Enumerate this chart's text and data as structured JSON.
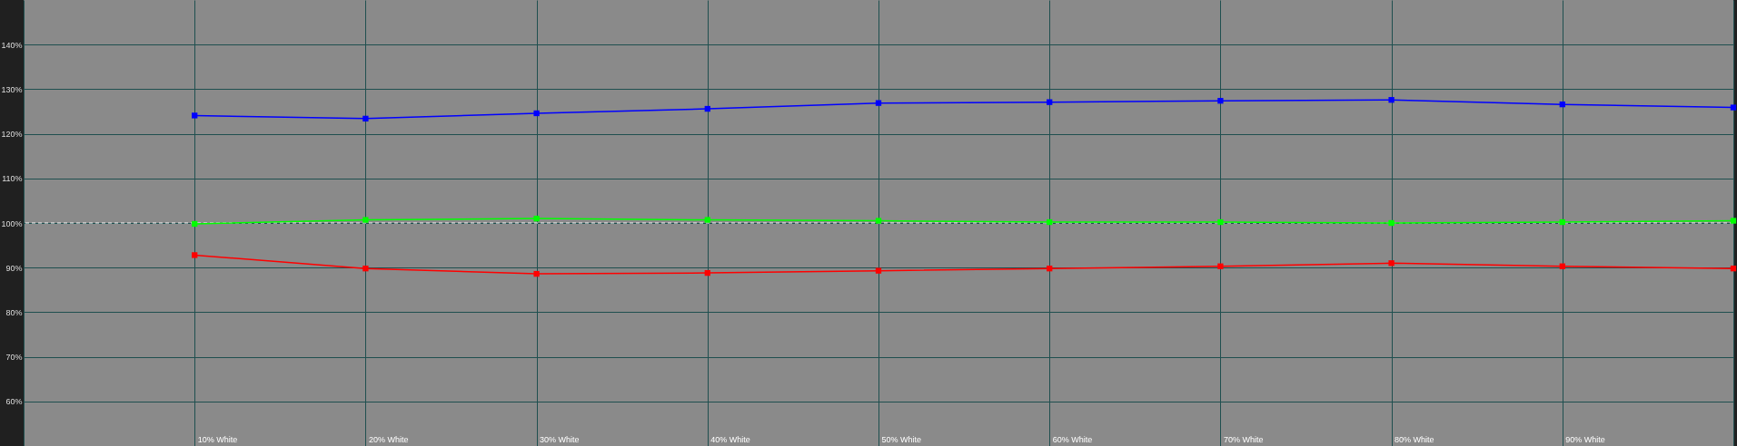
{
  "chart_data": {
    "type": "line",
    "categories": [
      null,
      "10% White",
      "20% White",
      "30% White",
      "40% White",
      "50% White",
      "60% White",
      "70% White",
      "80% White",
      "90% White",
      null
    ],
    "series": [
      {
        "color": "#0000ff",
        "values": [
          null,
          124.1,
          123.4,
          124.6,
          125.6,
          126.9,
          127.1,
          127.4,
          127.6,
          126.6,
          125.9
        ]
      },
      {
        "color": "#00ff00",
        "values": [
          null,
          99.8,
          100.7,
          101.0,
          100.7,
          100.5,
          100.2,
          100.2,
          100.0,
          100.2,
          100.5
        ]
      },
      {
        "color": "#ff0000",
        "values": [
          null,
          92.8,
          89.8,
          88.6,
          88.8,
          89.3,
          89.8,
          90.3,
          91.0,
          90.3,
          89.8
        ]
      }
    ],
    "ylim": [
      50,
      150
    ],
    "yticks": [
      {
        "value": 60,
        "label": "60%"
      },
      {
        "value": 70,
        "label": "70%"
      },
      {
        "value": 80,
        "label": "80%"
      },
      {
        "value": 90,
        "label": "90%"
      },
      {
        "value": 100,
        "label": "100%"
      },
      {
        "value": 110,
        "label": "110%"
      },
      {
        "value": 120,
        "label": "120%"
      },
      {
        "value": 130,
        "label": "130%"
      },
      {
        "value": 140,
        "label": "140%"
      }
    ],
    "ref_lines": [
      {
        "axis": "y",
        "value": 100,
        "color": "#ffffff",
        "line_style": "dashed"
      }
    ],
    "grid": true,
    "marker": "square",
    "line_style": "solid"
  }
}
